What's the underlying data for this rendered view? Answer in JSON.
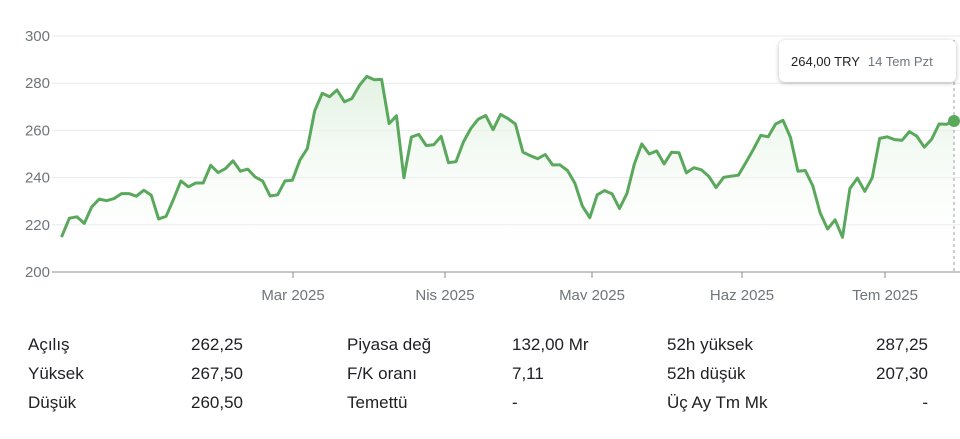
{
  "tooltip": {
    "price": "264,00 TRY",
    "date": "14 Tem Pzt"
  },
  "colors": {
    "line": "#5aa85c",
    "fill_top": "#dff0df",
    "grid": "#e8eaed",
    "axis": "#8c8c8c",
    "text": "#202124",
    "muted": "#70757a"
  },
  "chart_data": {
    "type": "area",
    "ylim": [
      200,
      300
    ],
    "yticks": [
      "200",
      "220",
      "240",
      "260",
      "280",
      "300"
    ],
    "xtick_labels": [
      "Mar 2025",
      "Nis 2025",
      "May 2025",
      "Haz 2025",
      "Tem 2025"
    ],
    "values": [
      215.3,
      222.8,
      223.4,
      220.6,
      227.6,
      230.9,
      230.2,
      231.1,
      233.2,
      233.2,
      232.1,
      234.6,
      232.6,
      222.5,
      223.6,
      230.8,
      238.6,
      236.1,
      237.7,
      237.7,
      245.2,
      242.1,
      243.8,
      247.1,
      242.7,
      243.6,
      240.2,
      238.5,
      232.2,
      232.7,
      238.6,
      238.9,
      247.4,
      252.3,
      268.3,
      275.7,
      274.3,
      277.1,
      272.1,
      273.5,
      279.0,
      282.9,
      281.5,
      281.6,
      262.9,
      266.2,
      239.9,
      257.2,
      258.3,
      253.6,
      253.9,
      257.5,
      246.3,
      246.8,
      255.1,
      260.8,
      264.8,
      266.3,
      260.3,
      266.8,
      265.0,
      262.7,
      250.8,
      249.3,
      248.0,
      249.8,
      245.4,
      245.4,
      243.0,
      237.6,
      228.0,
      223.0,
      232.7,
      234.5,
      233.1,
      226.9,
      233.2,
      245.8,
      254.3,
      250.0,
      251.3,
      245.8,
      250.7,
      250.5,
      242.0,
      244.2,
      243.3,
      240.6,
      235.8,
      240.1,
      240.6,
      241.0,
      246.4,
      251.9,
      257.9,
      257.3,
      262.7,
      264.3,
      257.0,
      242.7,
      243.0,
      236.5,
      225.0,
      218.2,
      222.1,
      214.7,
      235.4,
      239.8,
      234.2,
      239.9,
      256.6,
      257.3,
      256.1,
      255.8,
      259.5,
      257.6,
      252.9,
      256.3,
      262.7,
      262.6,
      264.0
    ]
  },
  "stats": {
    "col1": [
      {
        "label": "Açılış",
        "value": "262,25"
      },
      {
        "label": "Yüksek",
        "value": "267,50"
      },
      {
        "label": "Düşük",
        "value": "260,50"
      }
    ],
    "col2": [
      {
        "label": "Piyasa değ",
        "value": "132,00 Mr"
      },
      {
        "label": "F/K oranı",
        "value": "7,11"
      },
      {
        "label": "Temettü",
        "value": "-"
      }
    ],
    "col3": [
      {
        "label": "52h yüksek",
        "value": "287,25"
      },
      {
        "label": "52h düşük",
        "value": "207,30"
      },
      {
        "label": "Üç Ay Tm Mk",
        "value": "-"
      }
    ]
  }
}
